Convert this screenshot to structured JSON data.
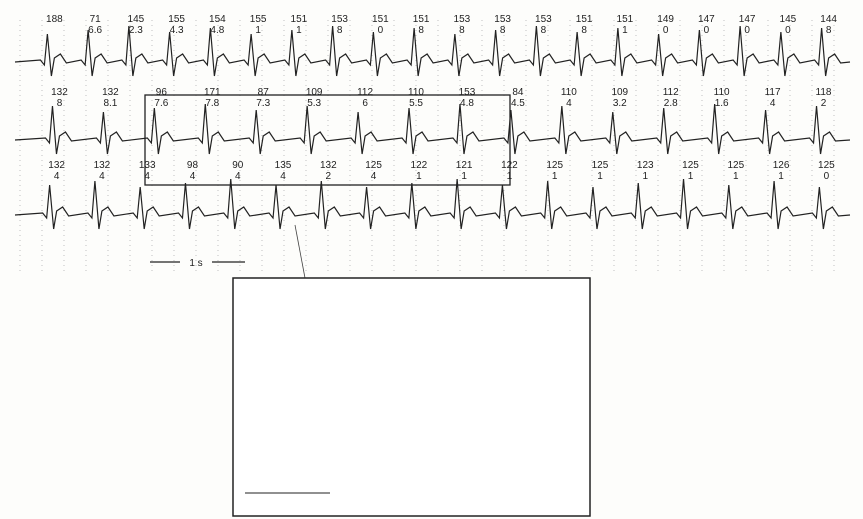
{
  "scale_label": "1 s",
  "rows": [
    {
      "beats": [
        {
          "rate": "188",
          "sub": ""
        },
        {
          "rate": "71",
          "sub": "6.6"
        },
        {
          "rate": "145",
          "sub": "2.3"
        },
        {
          "rate": "155",
          "sub": "4.3"
        },
        {
          "rate": "154",
          "sub": "4.8"
        },
        {
          "rate": "155",
          "sub": "1"
        },
        {
          "rate": "151",
          "sub": "1"
        },
        {
          "rate": "153",
          "sub": "8"
        },
        {
          "rate": "151",
          "sub": "0"
        },
        {
          "rate": "151",
          "sub": "8"
        },
        {
          "rate": "153",
          "sub": "8"
        },
        {
          "rate": "153",
          "sub": "8"
        },
        {
          "rate": "153",
          "sub": "8"
        },
        {
          "rate": "151",
          "sub": "8"
        },
        {
          "rate": "151",
          "sub": "1"
        },
        {
          "rate": "149",
          "sub": "0"
        },
        {
          "rate": "147",
          "sub": "0"
        },
        {
          "rate": "147",
          "sub": "0"
        },
        {
          "rate": "145",
          "sub": "0"
        },
        {
          "rate": "144",
          "sub": "8"
        }
      ]
    },
    {
      "beats": [
        {
          "rate": "132",
          "sub": "8"
        },
        {
          "rate": "132",
          "sub": "8.1"
        },
        {
          "rate": "96",
          "sub": "7.6"
        },
        {
          "rate": "171",
          "sub": "7.8"
        },
        {
          "rate": "87",
          "sub": "7.3"
        },
        {
          "rate": "109",
          "sub": "5.3"
        },
        {
          "rate": "112",
          "sub": "6"
        },
        {
          "rate": "110",
          "sub": "5.5"
        },
        {
          "rate": "153",
          "sub": "4.8"
        },
        {
          "rate": "84",
          "sub": "4.5"
        },
        {
          "rate": "110",
          "sub": "4"
        },
        {
          "rate": "109",
          "sub": "3.2"
        },
        {
          "rate": "112",
          "sub": "2.8"
        },
        {
          "rate": "110",
          "sub": "1.6"
        },
        {
          "rate": "117",
          "sub": "4"
        },
        {
          "rate": "118",
          "sub": "2"
        }
      ]
    },
    {
      "beats": [
        {
          "rate": "132",
          "sub": "4"
        },
        {
          "rate": "132",
          "sub": "4"
        },
        {
          "rate": "133",
          "sub": "4"
        },
        {
          "rate": "98",
          "sub": "4"
        },
        {
          "rate": "90",
          "sub": "4"
        },
        {
          "rate": "135",
          "sub": "4"
        },
        {
          "rate": "132",
          "sub": "2"
        },
        {
          "rate": "125",
          "sub": "4"
        },
        {
          "rate": "122",
          "sub": "1"
        },
        {
          "rate": "121",
          "sub": "1"
        },
        {
          "rate": "122",
          "sub": "1"
        },
        {
          "rate": "125",
          "sub": "1"
        },
        {
          "rate": "125",
          "sub": "1"
        },
        {
          "rate": "123",
          "sub": "1"
        },
        {
          "rate": "125",
          "sub": "1"
        },
        {
          "rate": "125",
          "sub": "1"
        },
        {
          "rate": "126",
          "sub": "1"
        },
        {
          "rate": "125",
          "sub": "0"
        }
      ]
    }
  ]
}
